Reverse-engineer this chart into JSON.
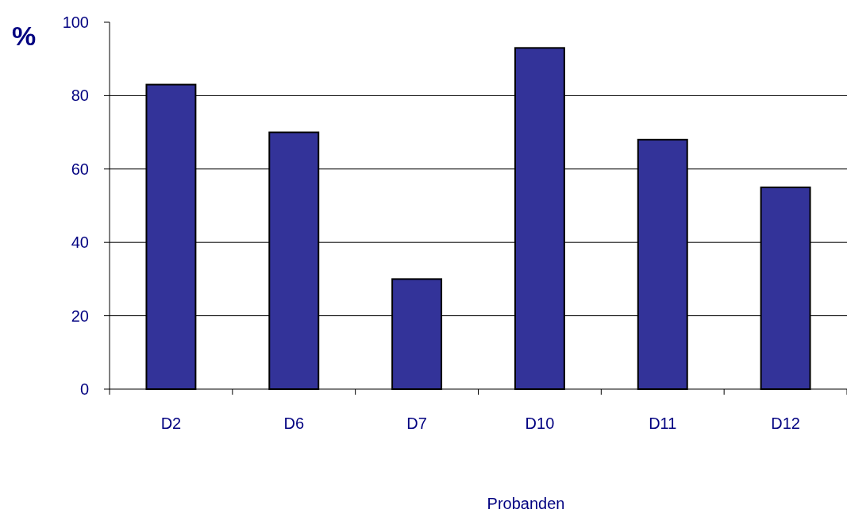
{
  "chart_data": {
    "type": "bar",
    "xlabel": "Probanden",
    "ylabel": "%",
    "categories": [
      "D2",
      "D6",
      "D7",
      "D10",
      "D11",
      "D12"
    ],
    "values": [
      83,
      70,
      30,
      93,
      68,
      55
    ],
    "color": "#333399",
    "ylim": [
      0,
      100
    ],
    "yticks": [
      0,
      20,
      40,
      60,
      80,
      100
    ],
    "grid": "y"
  }
}
